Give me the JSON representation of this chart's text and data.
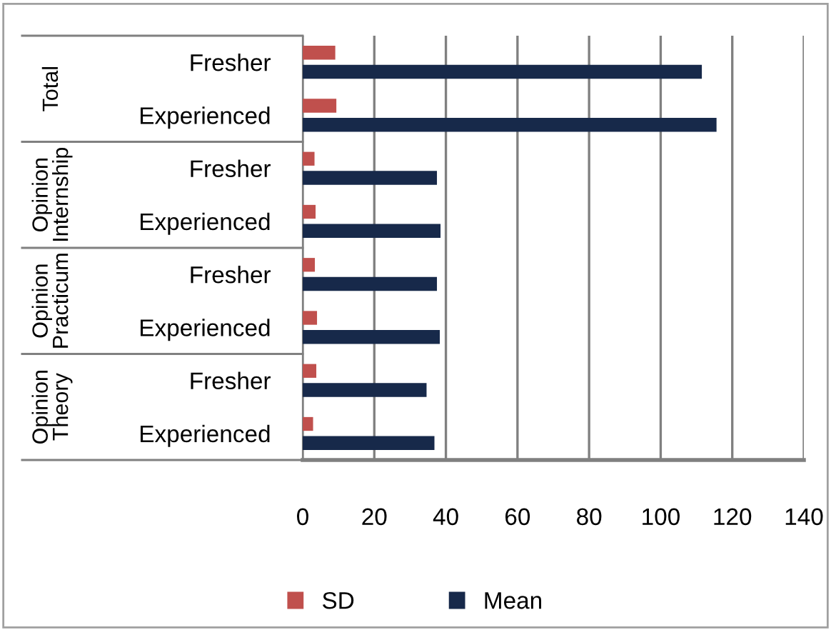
{
  "chart_data": {
    "type": "bar",
    "orientation": "horizontal",
    "categories": [
      "Fresher",
      "Experienced",
      "Fresher",
      "Experienced",
      "Fresher",
      "Experienced",
      "Fresher",
      "Experienced"
    ],
    "series": [
      {
        "name": "SD",
        "color": "#c0504d",
        "values": [
          9.1,
          9.4,
          3.3,
          3.6,
          3.4,
          4.0,
          3.8,
          2.9
        ]
      },
      {
        "name": "Mean",
        "color": "#17294a",
        "values": [
          111.5,
          115.6,
          37.5,
          38.5,
          37.5,
          38.3,
          34.6,
          36.8
        ]
      }
    ],
    "annotations": [
      "Total",
      "Opinion Internship",
      "Opinion Practicum",
      "Opinion Theory"
    ],
    "xlim": [
      0,
      140
    ],
    "xticks": [
      0,
      20,
      40,
      60,
      80,
      100,
      120,
      140
    ],
    "grid": "x",
    "legend": "bottom"
  }
}
